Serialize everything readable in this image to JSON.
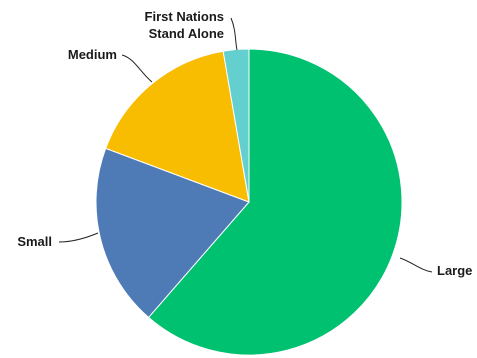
{
  "chart_data": {
    "type": "pie",
    "title": "",
    "start": "12 o'clock",
    "direction": "clockwise",
    "slices": [
      {
        "label": "Large",
        "value": 61.4,
        "color": "#00c170"
      },
      {
        "label": "Small",
        "value": 19.3,
        "color": "#4e7ab6"
      },
      {
        "label": "Medium",
        "value": 16.6,
        "color": "#f8bc00"
      },
      {
        "label": "First Nations Stand Alone",
        "label_lines": [
          "First Nations",
          "Stand Alone"
        ],
        "value": 2.7,
        "color": "#64cfcf"
      }
    ]
  }
}
